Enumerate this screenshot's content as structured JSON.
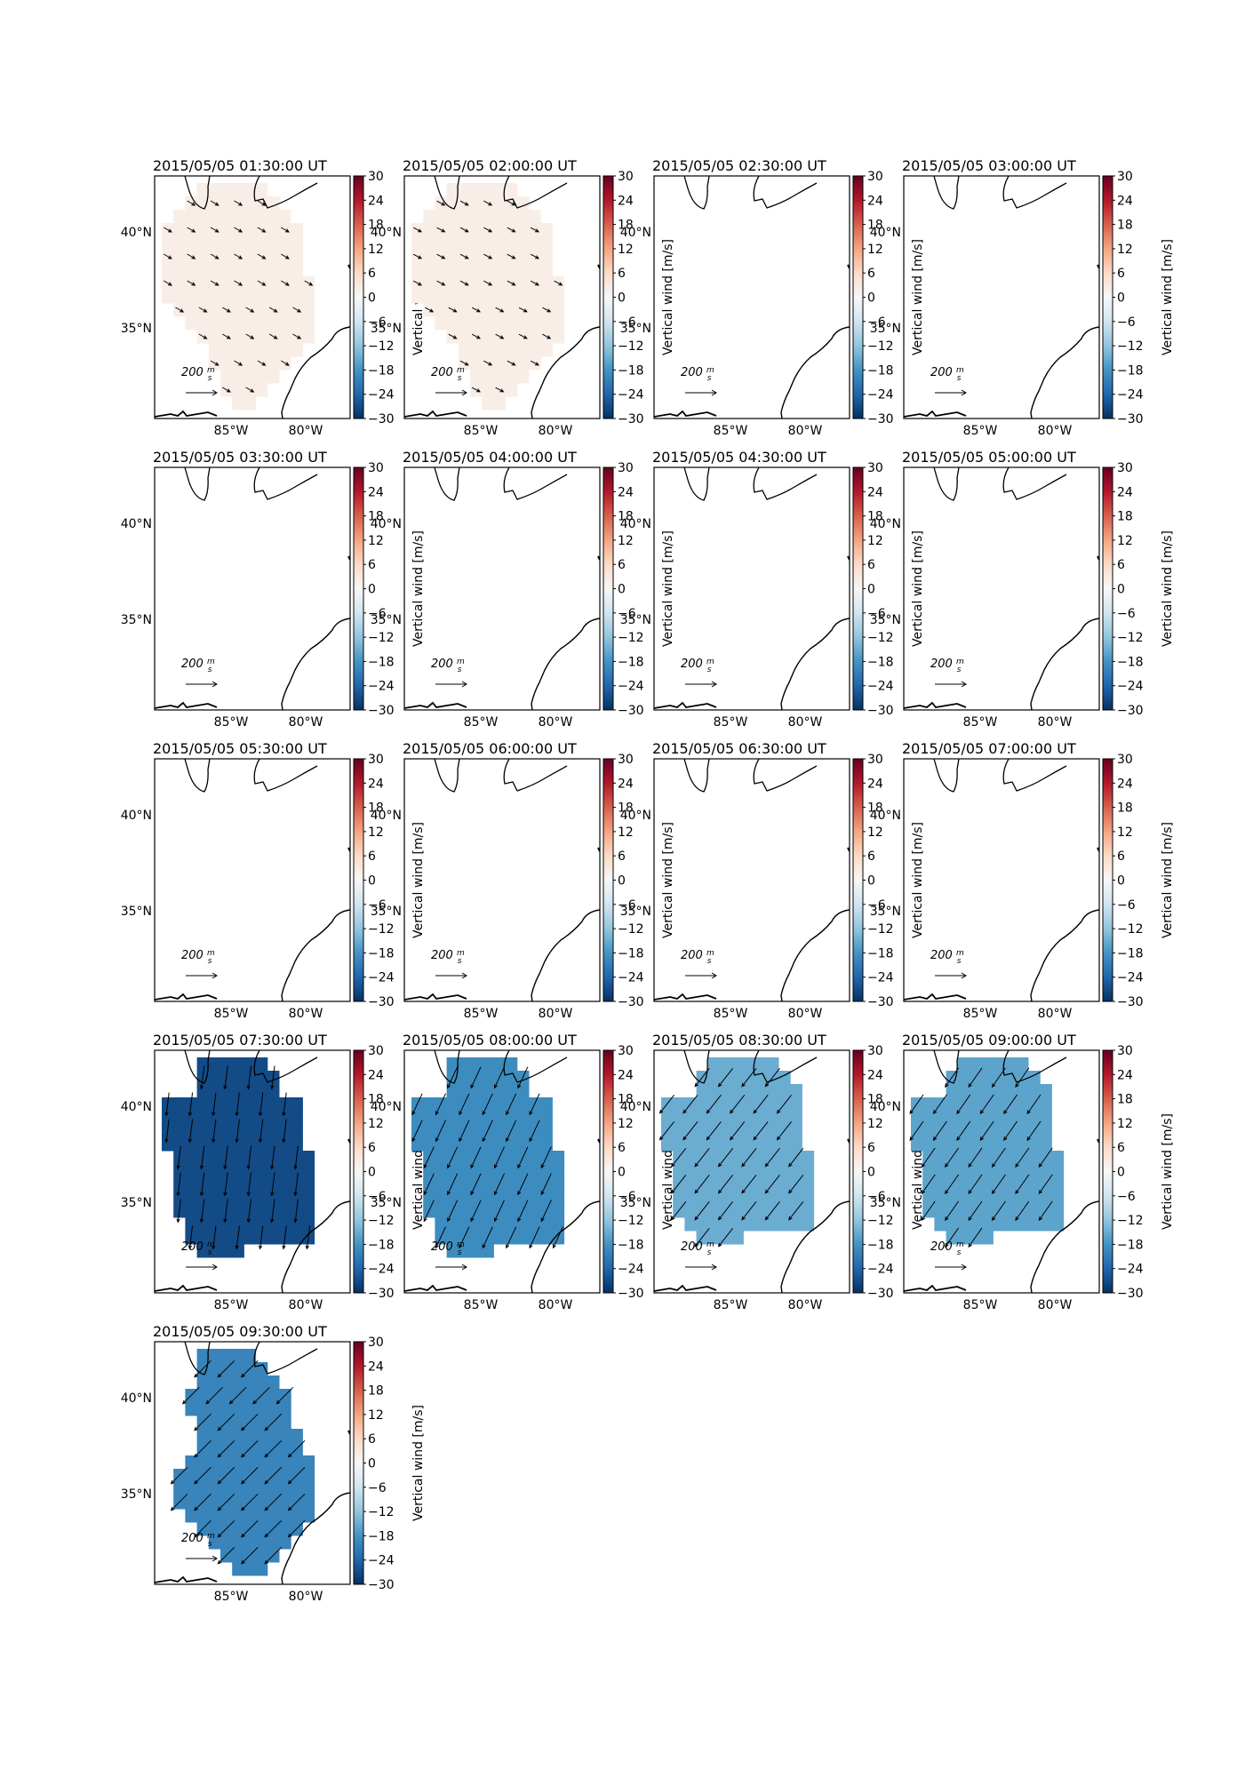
{
  "figure": {
    "colorbar_ticks": [
      "30",
      "24",
      "18",
      "12",
      "6",
      "0",
      "−6",
      "−12",
      "−18",
      "−24",
      "−30"
    ],
    "cbar_range": [
      -30,
      30
    ],
    "colorbar_label": "Vertical wind [m/s]",
    "lat_ticks": [
      "40°N",
      "35°N"
    ],
    "lon_ticks": [
      "85°W",
      "80°W"
    ],
    "reference_arrow": {
      "value": "200",
      "unit_numerator": "m",
      "unit_denominator": "s"
    },
    "colormap": [
      "#053061",
      "#2166ac",
      "#4393c3",
      "#92c5de",
      "#d1e5f0",
      "#f7f7f7",
      "#fddbc7",
      "#f4a582",
      "#d6604d",
      "#b2182b",
      "#67001f"
    ]
  },
  "chart_data": [
    {
      "type": "heatmap",
      "title": "2015/05/05 01:30:00 UT",
      "vertical_wind": 2,
      "region": "shape_a",
      "arrow_angle": 30
    },
    {
      "type": "heatmap",
      "title": "2015/05/05 02:00:00 UT",
      "vertical_wind": 2,
      "region": "shape_a",
      "arrow_angle": 28
    },
    {
      "type": "heatmap",
      "title": "2015/05/05 02:30:00 UT",
      "vertical_wind": null,
      "region": "none"
    },
    {
      "type": "heatmap",
      "title": "2015/05/05 03:00:00 UT",
      "vertical_wind": null,
      "region": "none"
    },
    {
      "type": "heatmap",
      "title": "2015/05/05 03:30:00 UT",
      "vertical_wind": null,
      "region": "none"
    },
    {
      "type": "heatmap",
      "title": "2015/05/05 04:00:00 UT",
      "vertical_wind": null,
      "region": "none"
    },
    {
      "type": "heatmap",
      "title": "2015/05/05 04:30:00 UT",
      "vertical_wind": null,
      "region": "none"
    },
    {
      "type": "heatmap",
      "title": "2015/05/05 05:00:00 UT",
      "vertical_wind": null,
      "region": "none"
    },
    {
      "type": "heatmap",
      "title": "2015/05/05 05:30:00 UT",
      "vertical_wind": null,
      "region": "none"
    },
    {
      "type": "heatmap",
      "title": "2015/05/05 06:00:00 UT",
      "vertical_wind": null,
      "region": "none"
    },
    {
      "type": "heatmap",
      "title": "2015/05/05 06:30:00 UT",
      "vertical_wind": null,
      "region": "none"
    },
    {
      "type": "heatmap",
      "title": "2015/05/05 07:00:00 UT",
      "vertical_wind": null,
      "region": "none"
    },
    {
      "type": "heatmap",
      "title": "2015/05/05 07:30:00 UT",
      "vertical_wind": -27,
      "region": "shape_b",
      "arrow_angle": 97
    },
    {
      "type": "heatmap",
      "title": "2015/05/05 08:00:00 UT",
      "vertical_wind": -19,
      "region": "shape_b",
      "arrow_angle": 115
    },
    {
      "type": "heatmap",
      "title": "2015/05/05 08:30:00 UT",
      "vertical_wind": -15,
      "region": "shape_c",
      "arrow_angle": 128
    },
    {
      "type": "heatmap",
      "title": "2015/05/05 09:00:00 UT",
      "vertical_wind": -16,
      "region": "shape_c",
      "arrow_angle": 125
    },
    {
      "type": "heatmap",
      "title": "2015/05/05 09:30:00 UT",
      "vertical_wind": -20,
      "region": "shape_d",
      "arrow_angle": 135
    }
  ]
}
